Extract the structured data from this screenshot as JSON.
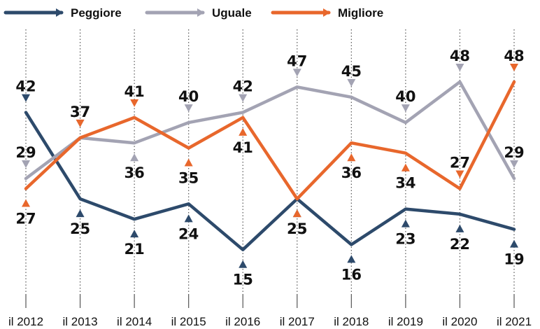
{
  "chart_data": {
    "type": "line",
    "title": "",
    "xlabel": "",
    "ylabel": "",
    "categories": [
      "il 2012",
      "il 2013",
      "il 2014",
      "il 2015",
      "il 2016",
      "il 2017",
      "il 2018",
      "il 2019",
      "il 2020",
      "il 2021"
    ],
    "series": [
      {
        "name": "Peggiore",
        "color": "#2d4a6b",
        "values": [
          42,
          25,
          21,
          24,
          15,
          25,
          16,
          23,
          22,
          19
        ]
      },
      {
        "name": "Uguale",
        "color": "#a3a3b3",
        "values": [
          29,
          37,
          36,
          40,
          42,
          47,
          45,
          40,
          48,
          29
        ]
      },
      {
        "name": "Migliore",
        "color": "#e8672c",
        "values": [
          27,
          37,
          41,
          35,
          41,
          25,
          36,
          34,
          27,
          48
        ]
      }
    ],
    "ylim": [
      10,
      52
    ],
    "grid": false,
    "legend_position": "top"
  }
}
